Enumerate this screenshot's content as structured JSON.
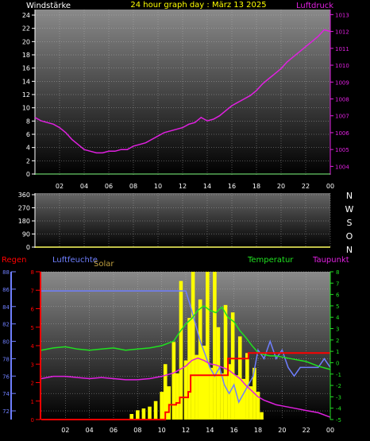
{
  "header": {
    "left_label": "Windstärke",
    "title": "24 hour graph day : März 13 2025",
    "right_label": "Luftdruck"
  },
  "colors": {
    "wind_axis": "#ffffff",
    "pressure": "#e020e0",
    "humidity": "#6f7fff",
    "solar": "#ffff00",
    "temperature": "#20e020",
    "dewpoint": "#e020e0",
    "rain": "#ff0000",
    "title": "#ffff00",
    "baseline": "#80ff80"
  },
  "x_ticks": [
    "02",
    "04",
    "06",
    "08",
    "10",
    "12",
    "14",
    "16",
    "18",
    "20",
    "22",
    "00"
  ],
  "panels": {
    "wind": {
      "y_ticks": [
        "0",
        "2",
        "4",
        "6",
        "8",
        "10",
        "12",
        "14",
        "16",
        "18",
        "20",
        "22",
        "24"
      ],
      "pressure_ticks": [
        "1004",
        "1005",
        "1006",
        "1007",
        "1008",
        "1009",
        "1010",
        "1011",
        "1012",
        "1013"
      ]
    },
    "direction": {
      "y_ticks": [
        "0",
        "90",
        "180",
        "270",
        "360"
      ],
      "compass": [
        "N",
        "W",
        "S",
        "O",
        "N"
      ]
    },
    "multi": {
      "labels": {
        "rain": "Regen",
        "humidity": "Luftfeuchte",
        "solar": "Solar",
        "temperature": "Temperatur",
        "dewpoint": "Taupunkt"
      },
      "humidity_ticks": [
        "72",
        "74",
        "76",
        "78",
        "80",
        "82",
        "84",
        "86",
        "88"
      ],
      "rain_ticks": [
        "0",
        "1",
        "2",
        "3",
        "4",
        "5",
        "6",
        "7",
        "8"
      ],
      "temp_ticks": [
        "-5",
        "-4",
        "-3",
        "-2",
        "-1",
        "0",
        "1",
        "2",
        "3",
        "4",
        "5",
        "6",
        "7",
        "8"
      ]
    }
  },
  "chart_data": [
    {
      "type": "line",
      "title": "24 hour graph day : März 13 2025",
      "x_unit": "hour",
      "series": [
        {
          "name": "Luftdruck",
          "axis": "right",
          "ylim": [
            1003.5,
            1013.3
          ],
          "x": [
            0,
            0.5,
            1,
            1.5,
            2,
            2.5,
            3,
            3.5,
            4,
            4.5,
            5,
            5.5,
            6,
            6.5,
            7,
            7.5,
            8,
            8.5,
            9,
            9.5,
            10,
            10.5,
            11,
            11.5,
            12,
            12.5,
            13,
            13.5,
            14,
            14.5,
            15,
            15.5,
            16,
            16.5,
            17,
            17.5,
            18,
            18.5,
            19,
            19.5,
            20,
            20.5,
            21,
            21.5,
            22,
            22.5,
            23,
            23.5,
            24
          ],
          "values": [
            1006.9,
            1006.7,
            1006.6,
            1006.5,
            1006.3,
            1006.0,
            1005.6,
            1005.3,
            1005.0,
            1004.9,
            1004.8,
            1004.8,
            1004.9,
            1004.9,
            1005.0,
            1005.0,
            1005.2,
            1005.3,
            1005.4,
            1005.6,
            1005.8,
            1006.0,
            1006.1,
            1006.2,
            1006.3,
            1006.5,
            1006.6,
            1006.9,
            1006.7,
            1006.8,
            1007.0,
            1007.3,
            1007.6,
            1007.8,
            1008.0,
            1008.2,
            1008.5,
            1008.9,
            1009.2,
            1009.5,
            1009.8,
            1010.2,
            1010.5,
            1010.8,
            1011.1,
            1011.4,
            1011.7,
            1012.1,
            1012.0
          ]
        },
        {
          "name": "Windstärke",
          "axis": "left",
          "ylim": [
            0,
            24
          ],
          "x": [
            0,
            24
          ],
          "values": [
            0,
            0
          ]
        }
      ]
    },
    {
      "type": "line",
      "x_unit": "hour",
      "ylim": [
        0,
        360
      ],
      "series": [
        {
          "name": "Windrichtung",
          "x": [
            0,
            24
          ],
          "values": [
            0,
            0
          ]
        }
      ]
    },
    {
      "type": "line",
      "x_unit": "hour",
      "series": [
        {
          "name": "Luftfeuchte",
          "axis": "humidity",
          "ylim": [
            71,
            88
          ],
          "x": [
            0,
            1,
            2,
            3,
            4,
            5,
            6,
            7,
            8,
            9,
            10,
            11,
            12,
            12.4,
            12.8,
            13.2,
            13.6,
            14,
            14.4,
            14.8,
            15.2,
            15.6,
            16,
            16.4,
            16.8,
            17.2,
            17.6,
            18,
            18.5,
            19,
            19.5,
            20,
            20.5,
            21,
            21.5,
            22,
            22.5,
            23,
            23.5,
            24
          ],
          "values": [
            85.8,
            85.8,
            85.8,
            85.8,
            85.8,
            85.8,
            85.8,
            85.8,
            85.8,
            85.8,
            85.8,
            85.8,
            85.8,
            84,
            82,
            80,
            78.5,
            77,
            76,
            77,
            75,
            74,
            75,
            73,
            74,
            75,
            76,
            79,
            78,
            80,
            78,
            79,
            77,
            76,
            77,
            77,
            77,
            77,
            78,
            77
          ]
        },
        {
          "name": "Temperatur",
          "axis": "temp",
          "ylim": [
            -5,
            8
          ],
          "x": [
            0,
            1,
            2,
            3,
            4,
            5,
            6,
            7,
            8,
            9,
            10,
            11,
            11.5,
            12,
            12.5,
            13,
            13.5,
            14,
            14.5,
            15,
            15.5,
            16,
            16.5,
            17,
            17.5,
            18,
            18.5,
            19,
            19.5,
            20,
            21,
            22,
            23,
            24
          ],
          "values": [
            1.1,
            1.3,
            1.4,
            1.2,
            1.1,
            1.2,
            1.3,
            1.1,
            1.2,
            1.3,
            1.5,
            1.9,
            2.7,
            3.4,
            3.9,
            4.6,
            5.0,
            4.6,
            4.4,
            4.9,
            4.0,
            3.6,
            2.8,
            2.2,
            1.5,
            0.9,
            0.7,
            0.6,
            0.6,
            0.5,
            0.3,
            0.1,
            -0.3,
            -0.6
          ]
        },
        {
          "name": "Taupunkt",
          "axis": "temp",
          "ylim": [
            -5,
            8
          ],
          "x": [
            0,
            1,
            2,
            3,
            4,
            5,
            6,
            7,
            8,
            9,
            10,
            11,
            12,
            12.5,
            13,
            13.5,
            14,
            14.5,
            15,
            15.5,
            16,
            16.5,
            17,
            17.5,
            18,
            18.5,
            19,
            19.5,
            20,
            21,
            22,
            23,
            24
          ],
          "values": [
            -1.4,
            -1.2,
            -1.2,
            -1.3,
            -1.4,
            -1.3,
            -1.4,
            -1.5,
            -1.5,
            -1.4,
            -1.2,
            -0.9,
            -0.3,
            0.2,
            0.4,
            0.2,
            -0.1,
            -0.2,
            -0.4,
            -0.6,
            -1.0,
            -1.4,
            -2.0,
            -2.5,
            -3.0,
            -3.3,
            -3.5,
            -3.7,
            -3.8,
            -4.0,
            -4.2,
            -4.4,
            -4.8
          ]
        },
        {
          "name": "Regen",
          "axis": "rain",
          "ylim": [
            0,
            8
          ],
          "x": [
            0,
            9.8,
            10.3,
            10.6,
            11.2,
            11.5,
            12.2,
            12.4,
            15.2,
            15.5,
            16.8,
            17.2,
            24
          ],
          "values": [
            0,
            0,
            0.4,
            0.8,
            0.9,
            1.2,
            1.5,
            2.4,
            2.4,
            3.3,
            3.3,
            3.6,
            3.6
          ]
        },
        {
          "name": "Solar",
          "axis": "solar",
          "ylim": [
            0,
            8
          ],
          "x": [
            7.5,
            8,
            8.5,
            9,
            9.5,
            10,
            10.3,
            10.6,
            11,
            11.3,
            11.6,
            12,
            12.3,
            12.6,
            12.9,
            13.2,
            13.5,
            13.8,
            14.1,
            14.4,
            14.7,
            15,
            15.3,
            15.6,
            15.9,
            16.2,
            16.5,
            16.8,
            17.1,
            17.4,
            17.7,
            18,
            18.3
          ],
          "values": [
            0.3,
            0.5,
            0.6,
            0.7,
            1.0,
            1.5,
            3.0,
            1.8,
            4.2,
            2.5,
            7.5,
            3.2,
            5.5,
            8.0,
            3.5,
            6.5,
            4.0,
            8.0,
            2.8,
            8.0,
            5.0,
            2.5,
            6.2,
            3.0,
            5.8,
            2.4,
            4.5,
            2.2,
            3.6,
            1.8,
            2.8,
            1.5,
            0.4
          ]
        }
      ]
    }
  ]
}
